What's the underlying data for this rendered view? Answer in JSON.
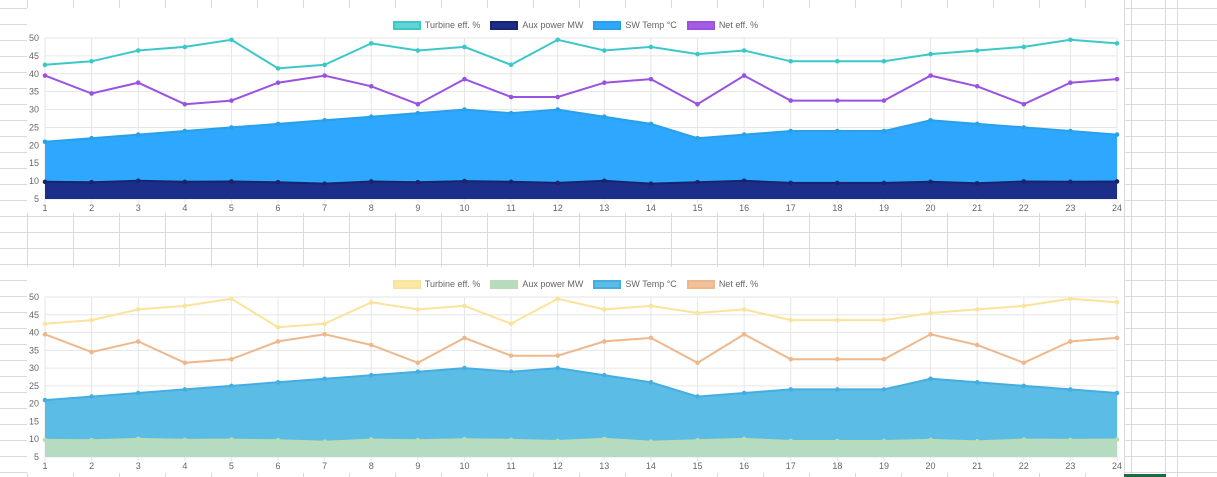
{
  "chart_data": [
    {
      "type": "line",
      "x": [
        1,
        2,
        3,
        4,
        5,
        6,
        7,
        8,
        9,
        10,
        11,
        12,
        13,
        14,
        15,
        16,
        17,
        18,
        19,
        20,
        21,
        22,
        23,
        24
      ],
      "ylim": [
        5,
        50
      ],
      "yticks": [
        5,
        10,
        15,
        20,
        25,
        30,
        35,
        40,
        45,
        50
      ],
      "grid": true,
      "legend_position": "top-center",
      "series": [
        {
          "name": "Turbine eff. %",
          "fill": false,
          "color": "#3cc7c9",
          "fill_color": "#62d3d4",
          "opacity": 1,
          "values": [
            42.5,
            43.5,
            46.5,
            47.5,
            49.5,
            41.5,
            42.5,
            48.5,
            46.5,
            47.5,
            42.5,
            49.5,
            46.5,
            47.5,
            45.5,
            46.5,
            43.5,
            43.5,
            43.5,
            45.5,
            46.5,
            47.5,
            49.5,
            48.5
          ]
        },
        {
          "name": "Aux power MW",
          "fill": true,
          "color": "#18246b",
          "fill_color": "#1b2f8a",
          "opacity": 1,
          "values": [
            9.8,
            9.7,
            10.1,
            9.8,
            9.9,
            9.7,
            9.3,
            9.9,
            9.7,
            10.0,
            9.8,
            9.5,
            10.1,
            9.3,
            9.7,
            10.1,
            9.5,
            9.5,
            9.5,
            9.8,
            9.4,
            9.9,
            9.8,
            9.9
          ]
        },
        {
          "name": "SW Temp °C",
          "fill": true,
          "color": "#2aa0e8",
          "fill_color": "#2ea8ff",
          "opacity": 1,
          "values": [
            21,
            22,
            23,
            24,
            25,
            26,
            27,
            28,
            29,
            30,
            29,
            30,
            28,
            26,
            22,
            23,
            24,
            24,
            24,
            27,
            26,
            25,
            24,
            23
          ]
        },
        {
          "name": "Net eff. %",
          "fill": false,
          "color": "#9a52e0",
          "fill_color": "#a65de6",
          "opacity": 1,
          "values": [
            39.5,
            34.5,
            37.5,
            31.5,
            32.5,
            37.5,
            39.5,
            36.5,
            31.5,
            38.5,
            33.5,
            33.5,
            37.5,
            38.5,
            31.5,
            39.5,
            32.5,
            32.5,
            32.5,
            39.5,
            36.5,
            31.5,
            37.5,
            38.5
          ]
        }
      ]
    },
    {
      "type": "line",
      "x": [
        1,
        2,
        3,
        4,
        5,
        6,
        7,
        8,
        9,
        10,
        11,
        12,
        13,
        14,
        15,
        16,
        17,
        18,
        19,
        20,
        21,
        22,
        23,
        24
      ],
      "ylim": [
        5,
        50
      ],
      "yticks": [
        5,
        10,
        15,
        20,
        25,
        30,
        35,
        40,
        45,
        50
      ],
      "grid": true,
      "legend_position": "top-center",
      "series": [
        {
          "name": "Turbine eff. %",
          "fill": false,
          "color": "#fbe39b",
          "fill_color": "#fbe8a6",
          "opacity": 1,
          "values": [
            42.5,
            43.5,
            46.5,
            47.5,
            49.5,
            41.5,
            42.5,
            48.5,
            46.5,
            47.5,
            42.5,
            49.5,
            46.5,
            47.5,
            45.5,
            46.5,
            43.5,
            43.5,
            43.5,
            45.5,
            46.5,
            47.5,
            49.5,
            48.5
          ]
        },
        {
          "name": "Aux power MW",
          "fill": true,
          "color": "#b9dcb4",
          "fill_color": "#b5dcc0",
          "opacity": 1,
          "values": [
            9.8,
            9.7,
            10.1,
            9.8,
            9.9,
            9.7,
            9.3,
            9.9,
            9.7,
            10.0,
            9.8,
            9.5,
            10.1,
            9.3,
            9.7,
            10.1,
            9.5,
            9.5,
            9.5,
            9.8,
            9.4,
            9.9,
            9.8,
            9.9
          ]
        },
        {
          "name": "SW Temp °C",
          "fill": true,
          "color": "#45aee0",
          "fill_color": "#5bbde6",
          "opacity": 1,
          "values": [
            21,
            22,
            23,
            24,
            25,
            26,
            27,
            28,
            29,
            30,
            29,
            30,
            28,
            26,
            22,
            23,
            24,
            24,
            24,
            27,
            26,
            25,
            24,
            23
          ]
        },
        {
          "name": "Net eff. %",
          "fill": false,
          "color": "#efb88c",
          "fill_color": "#f3c199",
          "opacity": 1,
          "values": [
            39.5,
            34.5,
            37.5,
            31.5,
            32.5,
            37.5,
            39.5,
            36.5,
            31.5,
            38.5,
            33.5,
            33.5,
            37.5,
            38.5,
            31.5,
            39.5,
            32.5,
            32.5,
            32.5,
            39.5,
            36.5,
            31.5,
            37.5,
            38.5
          ]
        }
      ]
    }
  ]
}
